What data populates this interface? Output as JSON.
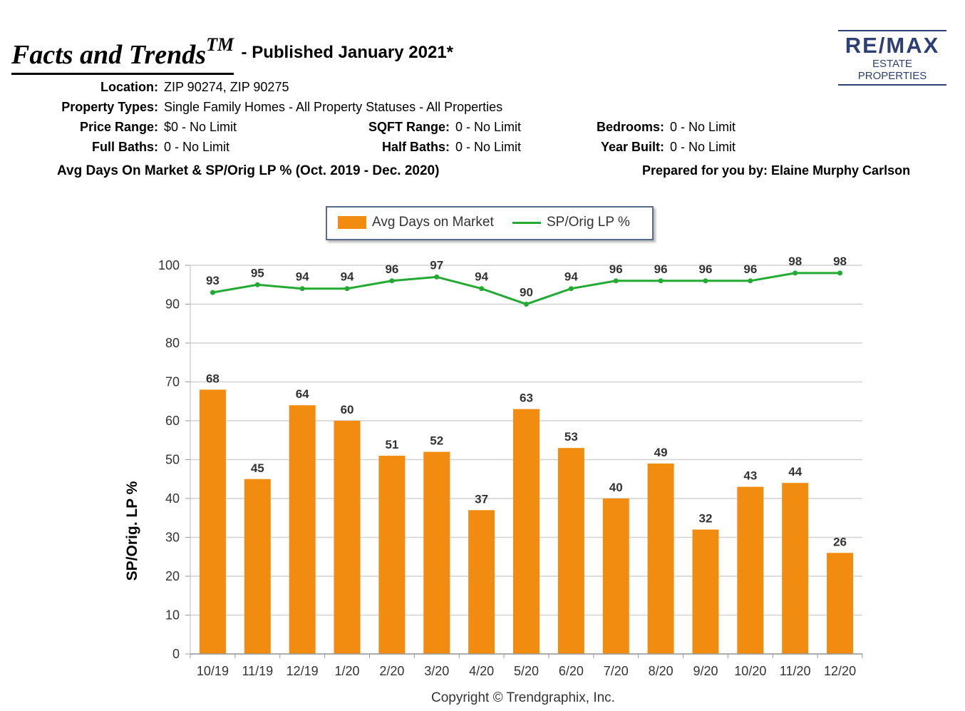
{
  "header": {
    "title": "Facts and Trends",
    "title_mark": "TM",
    "subtitle": "- Published January 2021*"
  },
  "logo": {
    "name": "RE/MAX",
    "sub": "ESTATE PROPERTIES"
  },
  "criteria": {
    "location": {
      "label": "Location:",
      "value": "ZIP 90274, ZIP 90275"
    },
    "property_types": {
      "label": "Property Types:",
      "value": "Single Family Homes - All Property Statuses - All Properties"
    },
    "price_range": {
      "label": "Price Range:",
      "value": "$0 - No Limit"
    },
    "sqft_range": {
      "label": "SQFT Range:",
      "value": "0 - No Limit"
    },
    "bedrooms": {
      "label": "Bedrooms:",
      "value": "0 - No Limit"
    },
    "full_baths": {
      "label": "Full Baths:",
      "value": "0 - No Limit"
    },
    "half_baths": {
      "label": "Half Baths:",
      "value": "0 - No Limit"
    },
    "year_built": {
      "label": "Year Built:",
      "value": "0 - No Limit"
    }
  },
  "report_heading": "Avg Days On Market & SP/Orig LP % (Oct. 2019 - Dec. 2020)",
  "prepared_by": "Prepared for you by: Elaine Murphy Carlson",
  "copyright": "Copyright © Trendgraphix, Inc.",
  "chart_data": {
    "type": "bar",
    "categories": [
      "10/19",
      "11/19",
      "12/19",
      "1/20",
      "2/20",
      "3/20",
      "4/20",
      "5/20",
      "6/20",
      "7/20",
      "8/20",
      "9/20",
      "10/20",
      "11/20",
      "12/20"
    ],
    "series": [
      {
        "name": "Avg Days on Market",
        "type": "bar",
        "color": "#f28c10",
        "values": [
          68,
          45,
          64,
          60,
          51,
          52,
          37,
          63,
          53,
          40,
          49,
          32,
          43,
          44,
          26
        ]
      },
      {
        "name": "SP/Orig LP %",
        "type": "line",
        "color": "#22aa33",
        "values": [
          93,
          95,
          94,
          94,
          96,
          97,
          94,
          90,
          94,
          96,
          96,
          96,
          96,
          98,
          98
        ]
      }
    ],
    "ylabel": "SP/Orig. LP %",
    "ylim": [
      0,
      100
    ],
    "yticks": [
      0,
      10,
      20,
      30,
      40,
      50,
      60,
      70,
      80,
      90,
      100
    ],
    "grid": true,
    "legend": "top-center"
  }
}
